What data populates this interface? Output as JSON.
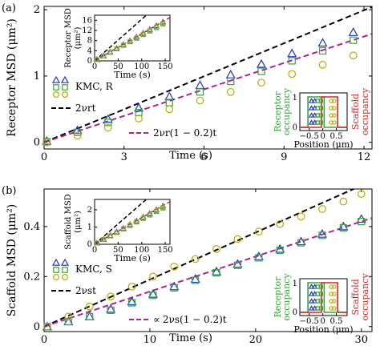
{
  "chart_data": [
    {
      "type": "scatter",
      "panel_label": "(a)",
      "xlabel": "Time (s)",
      "ylabel": "Receptor MSD (μm²)",
      "xlim": [
        0,
        12.3
      ],
      "ylim": [
        -0.1,
        2.05
      ],
      "xticks": [
        "0",
        "3",
        "6",
        "9",
        "12"
      ],
      "yticks": [
        "0",
        "1",
        "2"
      ],
      "legend": {
        "kmc_label": "KMC, R",
        "line1_label": "2νrt",
        "line2_label": "2νr(1 − 0.2)t"
      },
      "lines": [
        {
          "style": "black-dashed",
          "slope": 0.166
        },
        {
          "style": "magenta-dashed",
          "slope": 0.133
        }
      ],
      "series": [
        {
          "marker": "triangle",
          "color": "#2233cc",
          "x": [
            0.1,
            1.25,
            2.4,
            3.55,
            4.7,
            5.85,
            7.0,
            8.15,
            9.3,
            10.45,
            11.6
          ],
          "y": [
            0.02,
            0.18,
            0.35,
            0.52,
            0.69,
            0.86,
            1.02,
            1.18,
            1.34,
            1.5,
            1.66
          ]
        },
        {
          "marker": "square",
          "color": "#33aa33",
          "x": [
            0.1,
            1.25,
            2.4,
            3.55,
            4.7,
            5.85,
            7.0,
            8.15,
            9.3,
            10.45,
            11.6
          ],
          "y": [
            0.01,
            0.15,
            0.3,
            0.45,
            0.6,
            0.76,
            0.92,
            1.07,
            1.23,
            1.38,
            1.54
          ]
        },
        {
          "marker": "circle",
          "color": "#bbaa00",
          "x": [
            0.1,
            1.25,
            2.4,
            3.55,
            4.7,
            5.85,
            7.0,
            8.15,
            9.3,
            10.45,
            11.6
          ],
          "y": [
            0.0,
            0.1,
            0.22,
            0.36,
            0.5,
            0.63,
            0.76,
            0.9,
            1.03,
            1.17,
            1.31
          ]
        }
      ],
      "inset_msd": {
        "xlabel": "Time (s)",
        "ylabel": "Receptor MSD (μm²)",
        "xlim": [
          0,
          160
        ],
        "ylim": [
          0,
          18
        ],
        "xticks": [
          "0",
          "50",
          "100",
          "150"
        ],
        "yticks": [
          "0",
          "4",
          "8",
          "12",
          "16"
        ]
      },
      "inset_occupancy": {
        "xlabel": "Position (μm)",
        "ylabel_left": "Receptor occupancy",
        "ylabel_right": "Scaffold occupancy",
        "xticks": [
          "−0.5",
          "0",
          "0.5"
        ],
        "yticks": [
          "0",
          "1"
        ],
        "xlim": [
          -0.85,
          0.9
        ]
      }
    },
    {
      "type": "scatter",
      "panel_label": "(b)",
      "xlabel": "Time (s)",
      "ylabel": "Scaffold MSD (μm²)",
      "xlim": [
        0,
        31
      ],
      "ylim": [
        -0.02,
        0.55
      ],
      "xticks": [
        "0",
        "10",
        "20",
        "30"
      ],
      "yticks": [
        "0",
        "0.2",
        "0.4"
      ],
      "legend": {
        "kmc_label": "KMC, S",
        "line1_label": "2νst",
        "line2_label": "∝ 2νs(1 − 0.2)t"
      },
      "lines": [
        {
          "style": "black-dashed",
          "slope": 0.0188
        },
        {
          "style": "magenta-dashed",
          "slope": 0.014
        }
      ],
      "series": [
        {
          "marker": "triangle",
          "color": "#2233cc",
          "x": [
            0.3,
            2.3,
            4.3,
            6.3,
            8.3,
            10.3,
            12.3,
            14.3,
            16.3,
            18.3,
            20.3,
            22.3,
            24.3,
            26.3,
            28.3,
            30.0
          ],
          "y": [
            0.0,
            0.02,
            0.04,
            0.07,
            0.1,
            0.13,
            0.16,
            0.19,
            0.22,
            0.25,
            0.28,
            0.31,
            0.34,
            0.37,
            0.4,
            0.43
          ]
        },
        {
          "marker": "square",
          "color": "#33aa33",
          "x": [
            0.3,
            2.3,
            4.3,
            6.3,
            8.3,
            10.3,
            12.3,
            14.3,
            16.3,
            18.3,
            20.3,
            22.3,
            24.3,
            26.3,
            28.3,
            30.0
          ],
          "y": [
            0.0,
            0.02,
            0.04,
            0.065,
            0.095,
            0.125,
            0.155,
            0.185,
            0.215,
            0.245,
            0.275,
            0.305,
            0.335,
            0.365,
            0.395,
            0.42
          ]
        },
        {
          "marker": "circle",
          "color": "#bbaa00",
          "x": [
            0.3,
            2.3,
            4.3,
            6.3,
            8.3,
            10.3,
            12.3,
            14.3,
            16.3,
            18.3,
            20.3,
            22.3,
            24.3,
            26.3,
            28.3,
            30.0
          ],
          "y": [
            0.0,
            0.04,
            0.08,
            0.12,
            0.16,
            0.2,
            0.24,
            0.27,
            0.31,
            0.35,
            0.38,
            0.41,
            0.44,
            0.47,
            0.5,
            0.53
          ]
        }
      ],
      "inset_msd": {
        "xlabel": "Time (s)",
        "ylabel": "Scaffold MSD (μm²)",
        "xlim": [
          0,
          160
        ],
        "ylim": [
          0,
          2.6
        ],
        "xticks": [
          "0",
          "50",
          "100",
          "150"
        ],
        "yticks": [
          "0",
          "1",
          "2"
        ]
      },
      "inset_occupancy": {
        "xlabel": "Position (μm)",
        "ylabel_left": "Receptor occupancy",
        "ylabel_right": "Scaffold occupancy",
        "xticks": [
          "−0.5",
          "0",
          "0.5"
        ],
        "yticks": [
          "0",
          "1"
        ],
        "xlim": [
          -0.85,
          0.9
        ]
      }
    }
  ]
}
